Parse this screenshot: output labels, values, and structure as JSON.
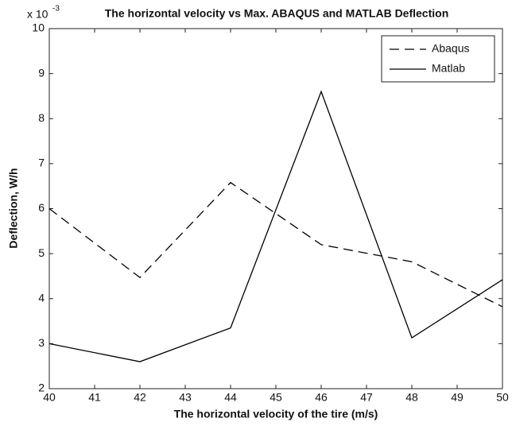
{
  "chart_data": {
    "type": "line",
    "title": "The horizontal velocity vs Max. ABAQUS and MATLAB Deflection",
    "x_label": "The horizontal velocity of the tire (m/s)",
    "y_label": "Deflection, W/h",
    "y_scale_label": "x 10",
    "y_scale_exponent": "-3",
    "x": [
      40,
      42,
      44,
      46,
      48,
      50
    ],
    "series": [
      {
        "name": "Abaqus",
        "color": "#000000",
        "dash": "dashed",
        "values": [
          6.0,
          4.47,
          6.58,
          5.2,
          4.82,
          3.82
        ]
      },
      {
        "name": "Matlab",
        "color": "#000000",
        "dash": "solid",
        "values": [
          3.0,
          2.6,
          3.35,
          8.6,
          3.13,
          4.42
        ]
      }
    ],
    "xlim": [
      40,
      50
    ],
    "xticks": [
      40,
      41,
      42,
      43,
      44,
      45,
      46,
      47,
      48,
      49,
      50
    ],
    "ylim": [
      2,
      10
    ],
    "yticks": [
      2,
      3,
      4,
      5,
      6,
      7,
      8,
      9,
      10
    ],
    "grid": false,
    "legend": "northeast"
  }
}
